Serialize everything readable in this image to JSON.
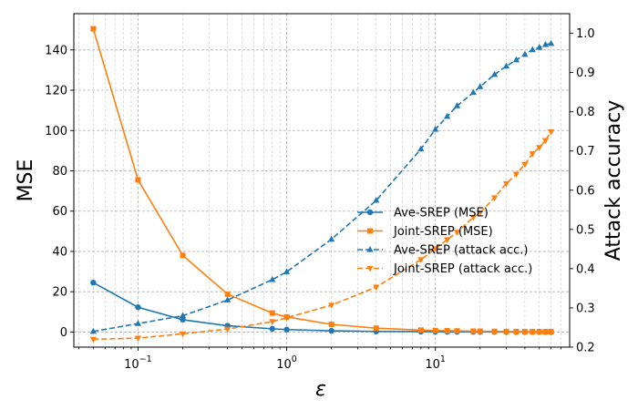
{
  "chart_data": {
    "type": "line",
    "title": "",
    "xlabel": "ε",
    "ylabel_left": "MSE",
    "ylabel_right": "Attack accuracy",
    "xscale": "log",
    "xlim": [
      0.037,
      80
    ],
    "ylim_left": [
      -7.5,
      158
    ],
    "ylim_right": [
      0.2,
      1.05
    ],
    "x_major_ticks": [
      {
        "value": 0.1,
        "base": "10",
        "exp": "−1"
      },
      {
        "value": 1,
        "base": "10",
        "exp": "0"
      },
      {
        "value": 10,
        "base": "10",
        "exp": "1"
      }
    ],
    "y_left_ticks": [
      0,
      20,
      40,
      60,
      80,
      100,
      120,
      140
    ],
    "y_right_ticks": [
      0.2,
      0.3,
      0.4,
      0.5,
      0.6,
      0.7,
      0.8,
      0.9,
      1.0
    ],
    "y_right_tick_labels": [
      "0.2",
      "0.3",
      "0.4",
      "0.5",
      "0.6",
      "0.7",
      "0.8",
      "0.9",
      "1.0"
    ],
    "grid": true,
    "legend_position": "center-right",
    "colors": {
      "blue": "#1f77b4",
      "orange": "#ff7f0e"
    },
    "series": [
      {
        "name": "Ave-SREP (MSE)",
        "axis": "left",
        "color": "#1f77b4",
        "style": "solid",
        "marker": "circle",
        "x": [
          0.05,
          0.1,
          0.2,
          0.4,
          0.8,
          1,
          2,
          4,
          8,
          10,
          12,
          14,
          18,
          20,
          25,
          30,
          35,
          40,
          45,
          50,
          55,
          60
        ],
        "y": [
          24.5,
          12.3,
          6.1,
          3.1,
          1.6,
          1.2,
          0.6,
          0.3,
          0.2,
          0.15,
          0.12,
          0.1,
          0.08,
          0.07,
          0.06,
          0.05,
          0.04,
          0.04,
          0.03,
          0.03,
          0.03,
          0.02
        ]
      },
      {
        "name": "Joint-SREP (MSE)",
        "axis": "left",
        "color": "#ff7f0e",
        "style": "solid",
        "marker": "square",
        "x": [
          0.05,
          0.1,
          0.2,
          0.4,
          0.8,
          1,
          2,
          4,
          8,
          10,
          12,
          14,
          18,
          20,
          25,
          30,
          35,
          40,
          45,
          50,
          55,
          60
        ],
        "y": [
          150.5,
          75.5,
          38,
          18.8,
          9.4,
          7.5,
          3.8,
          1.9,
          0.95,
          0.75,
          0.63,
          0.54,
          0.42,
          0.38,
          0.3,
          0.25,
          0.22,
          0.19,
          0.17,
          0.15,
          0.14,
          0.13
        ]
      },
      {
        "name": "Ave-SREP (attack acc.)",
        "axis": "right",
        "color": "#1f77b4",
        "style": "dashed",
        "marker": "triangle-up",
        "x": [
          0.05,
          0.1,
          0.2,
          0.4,
          0.8,
          1,
          2,
          4,
          8,
          10,
          12,
          14,
          18,
          20,
          25,
          30,
          35,
          40,
          45,
          50,
          55,
          60
        ],
        "y": [
          0.24,
          0.26,
          0.28,
          0.32,
          0.372,
          0.392,
          0.475,
          0.574,
          0.705,
          0.755,
          0.788,
          0.815,
          0.849,
          0.864,
          0.895,
          0.916,
          0.932,
          0.946,
          0.958,
          0.964,
          0.971,
          0.974
        ]
      },
      {
        "name": "Joint-SREP (attack acc.)",
        "axis": "right",
        "color": "#ff7f0e",
        "style": "dashed",
        "marker": "triangle-down",
        "x": [
          0.05,
          0.1,
          0.2,
          0.4,
          0.8,
          1,
          2,
          4,
          8,
          10,
          12,
          14,
          18,
          20,
          25,
          30,
          35,
          40,
          45,
          50,
          55,
          60
        ],
        "y": [
          0.22,
          0.223,
          0.234,
          0.246,
          0.265,
          0.275,
          0.307,
          0.353,
          0.423,
          0.451,
          0.474,
          0.493,
          0.531,
          0.543,
          0.581,
          0.617,
          0.641,
          0.666,
          0.693,
          0.709,
          0.727,
          0.749
        ]
      }
    ]
  }
}
